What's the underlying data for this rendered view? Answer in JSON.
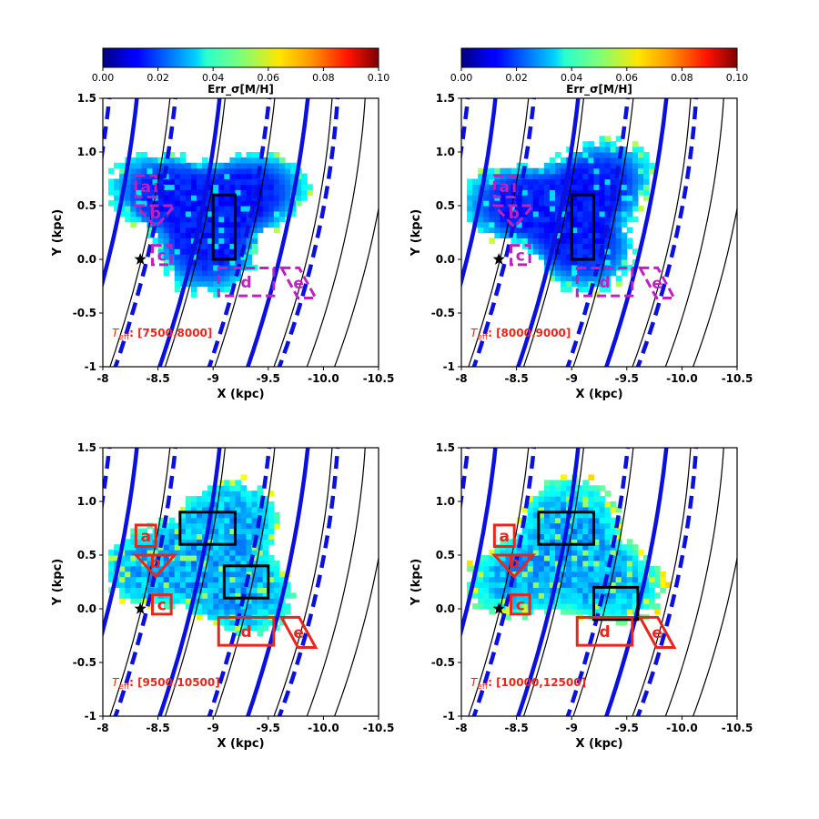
{
  "colorbar": {
    "label": "Err_σ[M/H]",
    "ticks": [
      "0.00",
      "0.02",
      "0.04",
      "0.06",
      "0.08",
      "0.10"
    ],
    "range": [
      0.0,
      0.1
    ],
    "colormap": "jet"
  },
  "axes": {
    "xlabel": "X (kpc)",
    "ylabel": "Y (kpc)",
    "xticks": [
      "-8",
      "-8.5",
      "-9",
      "-9.5",
      "-10.0",
      "-10.5"
    ],
    "yticks": [
      "1.5",
      "1.0",
      "0.5",
      "0.0",
      "-0.5",
      "-1"
    ],
    "xlim": [
      -8.0,
      -10.5
    ],
    "ylim": [
      -1.0,
      1.5
    ]
  },
  "panels": [
    {
      "teff_range": "[7500,8000]",
      "region_color": "#c020c0",
      "region_style": "dashed"
    },
    {
      "teff_range": "[8000,9000]",
      "region_color": "#c020c0",
      "region_style": "dashed"
    },
    {
      "teff_range": "[9500,10500]",
      "region_color": "#e8261c",
      "region_style": "solid"
    },
    {
      "teff_range": "[10000,12500]",
      "region_color": "#e8261c",
      "region_style": "solid"
    }
  ],
  "colors": {
    "spiral_arm": "#0a10e0",
    "contour": "#000000",
    "teff_label": "#e8261c",
    "sun_marker": "#000000"
  },
  "chart_data": [
    {
      "type": "heatmap",
      "title": "",
      "xlabel": "X (kpc)",
      "ylabel": "Y (kpc)",
      "xlim": [
        -8.0,
        -10.5
      ],
      "ylim": [
        -1.0,
        1.5
      ],
      "colorbar_label": "Err_σ[M/H]",
      "colorbar_range": [
        0.0,
        0.1
      ],
      "annotation": "T_eff: [7500,8000]",
      "sun_position": [
        -8.34,
        0.0
      ],
      "typical_value": 0.015,
      "edge_value": 0.04,
      "regions": [
        {
          "label": "a",
          "shape": "box",
          "x": [
            -8.3,
            -8.48
          ],
          "y": [
            0.58,
            0.78
          ]
        },
        {
          "label": "b",
          "shape": "triangle",
          "points": [
            [
              -8.3,
              0.5
            ],
            [
              -8.65,
              0.5
            ],
            [
              -8.48,
              0.3
            ]
          ]
        },
        {
          "label": "c",
          "shape": "box",
          "x": [
            -8.45,
            -8.62
          ],
          "y": [
            -0.05,
            0.13
          ]
        },
        {
          "label": "d",
          "shape": "box",
          "x": [
            -9.05,
            -9.55
          ],
          "y": [
            -0.34,
            -0.08
          ]
        },
        {
          "label": "e",
          "shape": "parallelogram",
          "points": [
            [
              -9.62,
              -0.08
            ],
            [
              -9.78,
              -0.08
            ],
            [
              -9.93,
              -0.36
            ],
            [
              -9.77,
              -0.36
            ]
          ]
        }
      ],
      "black_boxes": [
        {
          "x": [
            -9.0,
            -9.2
          ],
          "y": [
            0.0,
            0.6
          ]
        }
      ]
    },
    {
      "type": "heatmap",
      "title": "",
      "xlabel": "X (kpc)",
      "ylabel": "Y (kpc)",
      "xlim": [
        -8.0,
        -10.5
      ],
      "ylim": [
        -1.0,
        1.5
      ],
      "colorbar_label": "Err_σ[M/H]",
      "colorbar_range": [
        0.0,
        0.1
      ],
      "annotation": "T_eff: [8000,9000]",
      "sun_position": [
        -8.34,
        0.0
      ],
      "typical_value": 0.015,
      "edge_value": 0.04,
      "regions": [
        {
          "label": "a",
          "shape": "box",
          "x": [
            -8.3,
            -8.48
          ],
          "y": [
            0.58,
            0.78
          ]
        },
        {
          "label": "b",
          "shape": "triangle",
          "points": [
            [
              -8.3,
              0.5
            ],
            [
              -8.65,
              0.5
            ],
            [
              -8.48,
              0.3
            ]
          ]
        },
        {
          "label": "c",
          "shape": "box",
          "x": [
            -8.45,
            -8.62
          ],
          "y": [
            -0.05,
            0.13
          ]
        },
        {
          "label": "d",
          "shape": "box",
          "x": [
            -9.05,
            -9.55
          ],
          "y": [
            -0.34,
            -0.08
          ]
        },
        {
          "label": "e",
          "shape": "parallelogram",
          "points": [
            [
              -9.62,
              -0.08
            ],
            [
              -9.78,
              -0.08
            ],
            [
              -9.93,
              -0.36
            ],
            [
              -9.77,
              -0.36
            ]
          ]
        }
      ],
      "black_boxes": [
        {
          "x": [
            -9.0,
            -9.2
          ],
          "y": [
            0.0,
            0.6
          ]
        }
      ]
    },
    {
      "type": "heatmap",
      "title": "",
      "xlabel": "X (kpc)",
      "ylabel": "Y (kpc)",
      "xlim": [
        -8.0,
        -10.5
      ],
      "ylim": [
        -1.0,
        1.5
      ],
      "colorbar_label": "Err_σ[M/H]",
      "colorbar_range": [
        0.0,
        0.1
      ],
      "annotation": "T_eff: [9500,10500]",
      "sun_position": [
        -8.34,
        0.0
      ],
      "typical_value": 0.03,
      "edge_value": 0.04,
      "regions": [
        {
          "label": "a",
          "shape": "box",
          "x": [
            -8.3,
            -8.48
          ],
          "y": [
            0.58,
            0.78
          ]
        },
        {
          "label": "b",
          "shape": "triangle",
          "points": [
            [
              -8.3,
              0.5
            ],
            [
              -8.65,
              0.5
            ],
            [
              -8.48,
              0.3
            ]
          ]
        },
        {
          "label": "c",
          "shape": "box",
          "x": [
            -8.45,
            -8.62
          ],
          "y": [
            -0.05,
            0.13
          ]
        },
        {
          "label": "d",
          "shape": "box",
          "x": [
            -9.05,
            -9.55
          ],
          "y": [
            -0.34,
            -0.08
          ]
        },
        {
          "label": "e",
          "shape": "parallelogram",
          "points": [
            [
              -9.62,
              -0.08
            ],
            [
              -9.78,
              -0.08
            ],
            [
              -9.93,
              -0.36
            ],
            [
              -9.77,
              -0.36
            ]
          ]
        }
      ],
      "black_boxes": [
        {
          "x": [
            -8.7,
            -9.2
          ],
          "y": [
            0.6,
            0.9
          ]
        },
        {
          "x": [
            -9.1,
            -9.5
          ],
          "y": [
            0.1,
            0.4
          ]
        }
      ]
    },
    {
      "type": "heatmap",
      "title": "",
      "xlabel": "X (kpc)",
      "ylabel": "Y (kpc)",
      "xlim": [
        -8.0,
        -10.5
      ],
      "ylim": [
        -1.0,
        1.5
      ],
      "colorbar_label": "Err_σ[M/H]",
      "colorbar_range": [
        0.0,
        0.1
      ],
      "annotation": "T_eff: [10000,12500]",
      "sun_position": [
        -8.34,
        0.0
      ],
      "typical_value": 0.03,
      "edge_value": 0.045,
      "regions": [
        {
          "label": "a",
          "shape": "box",
          "x": [
            -8.3,
            -8.48
          ],
          "y": [
            0.58,
            0.78
          ]
        },
        {
          "label": "b",
          "shape": "triangle",
          "points": [
            [
              -8.3,
              0.5
            ],
            [
              -8.65,
              0.5
            ],
            [
              -8.48,
              0.3
            ]
          ]
        },
        {
          "label": "c",
          "shape": "box",
          "x": [
            -8.45,
            -8.62
          ],
          "y": [
            -0.05,
            0.13
          ]
        },
        {
          "label": "d",
          "shape": "box",
          "x": [
            -9.05,
            -9.55
          ],
          "y": [
            -0.34,
            -0.08
          ]
        },
        {
          "label": "e",
          "shape": "parallelogram",
          "points": [
            [
              -9.62,
              -0.08
            ],
            [
              -9.78,
              -0.08
            ],
            [
              -9.93,
              -0.36
            ],
            [
              -9.77,
              -0.36
            ]
          ]
        }
      ],
      "black_boxes": [
        {
          "x": [
            -8.7,
            -9.2
          ],
          "y": [
            0.6,
            0.9
          ]
        },
        {
          "x": [
            -9.2,
            -9.6
          ],
          "y": [
            -0.1,
            0.2
          ]
        }
      ]
    }
  ]
}
